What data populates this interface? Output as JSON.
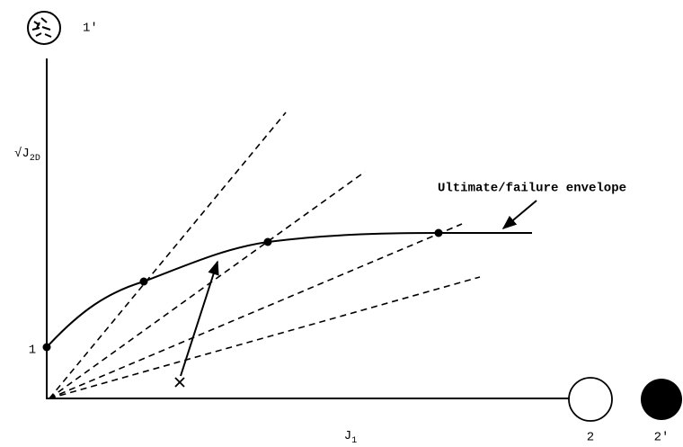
{
  "icon_label": "1′",
  "y_axis": {
    "main": "√J",
    "sub": "2D"
  },
  "y_tick": "1",
  "x_axis": {
    "main": "J",
    "sub": "1"
  },
  "envelope_label": "Ultimate/failure envelope",
  "hollow_circle_label": "2",
  "filled_circle_label": "2′"
}
